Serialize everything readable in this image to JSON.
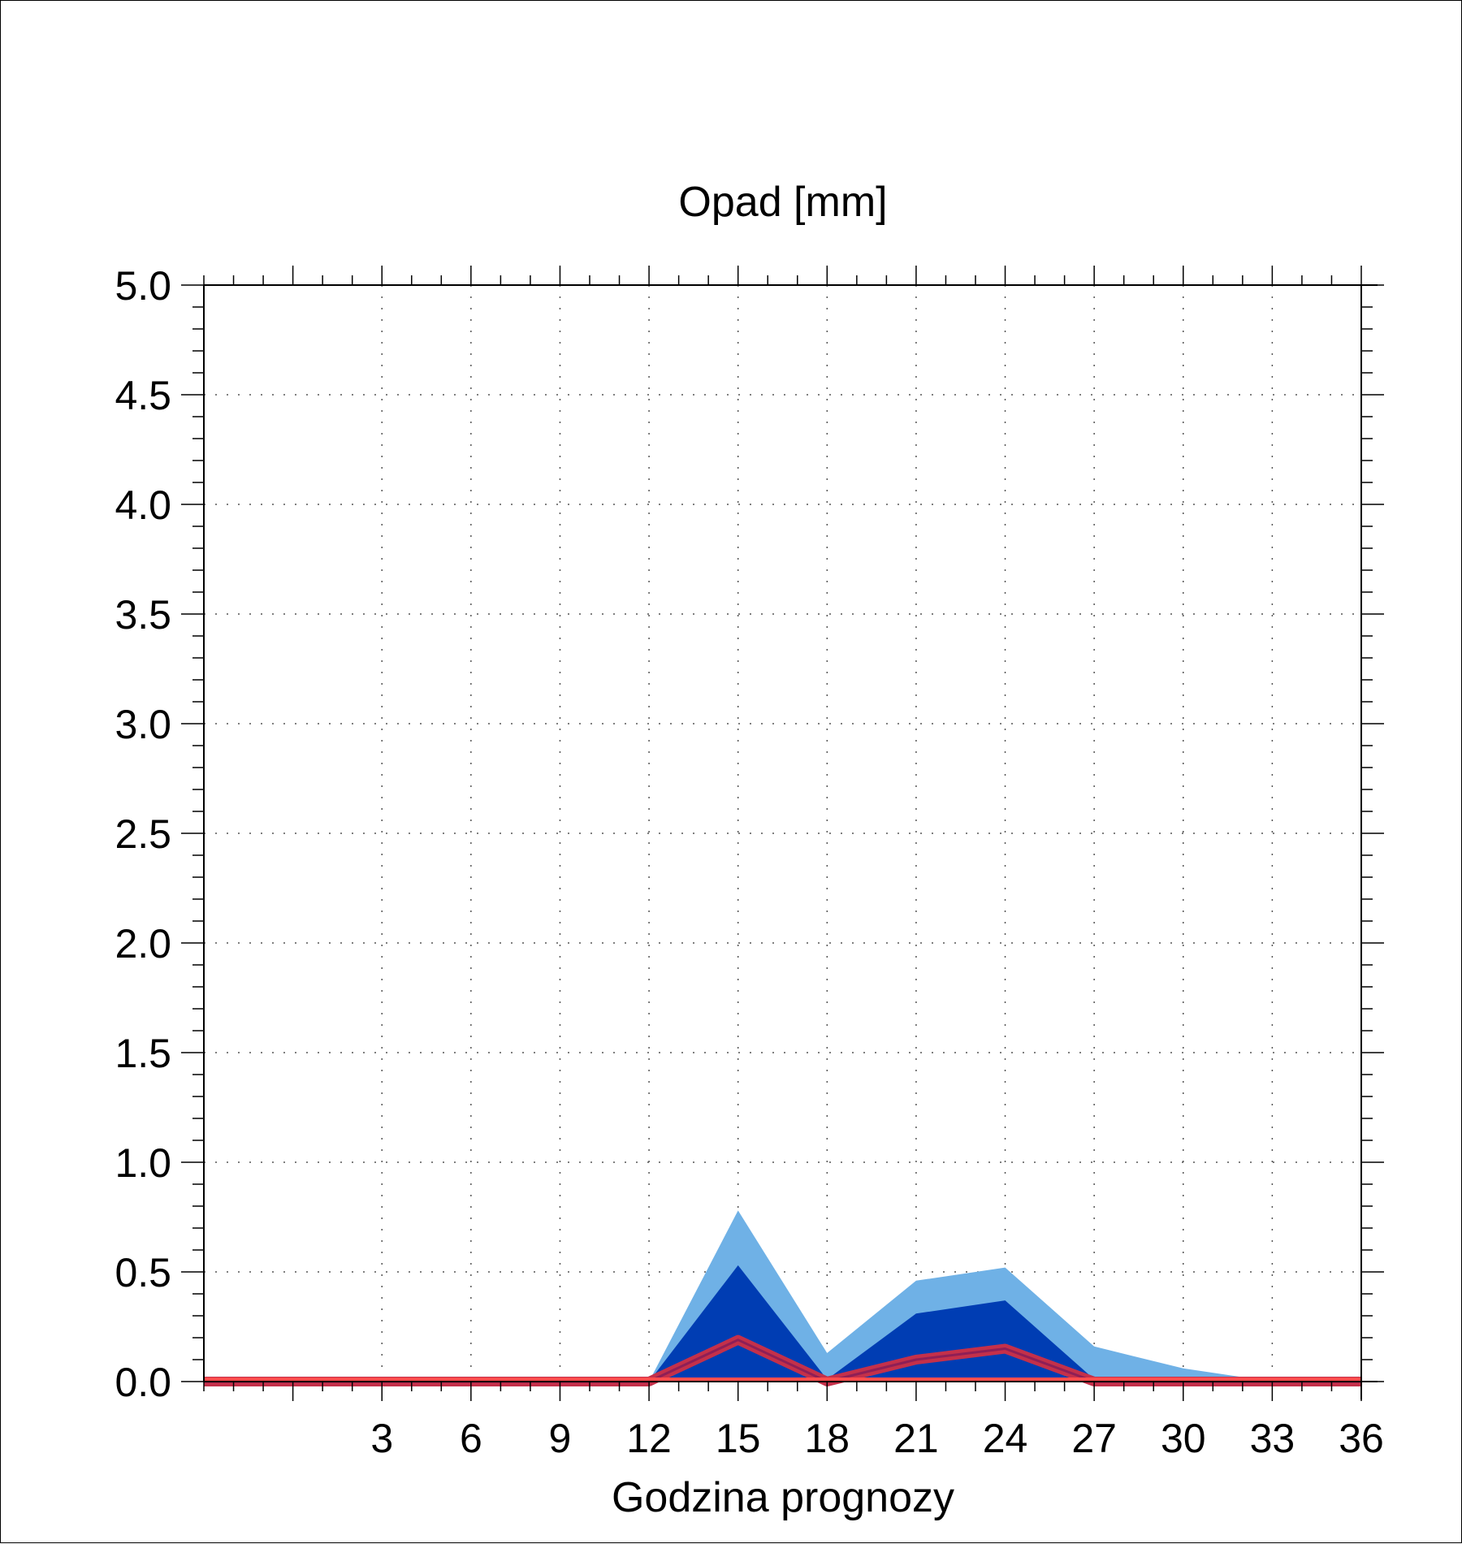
{
  "chart_data": {
    "type": "area",
    "title": "Opad [mm]",
    "xlabel": "Godzina prognozy",
    "ylabel": "",
    "xlim": [
      -3,
      36
    ],
    "ylim": [
      0,
      5
    ],
    "xticks": [
      3,
      6,
      9,
      12,
      15,
      18,
      21,
      24,
      27,
      30,
      33,
      36
    ],
    "xtick_labels": [
      "3",
      "6",
      "9",
      "12",
      "15",
      "18",
      "21",
      "24",
      "27",
      "30",
      "33",
      "36"
    ],
    "yticks": [
      0,
      0.5,
      1,
      1.5,
      2,
      2.5,
      3,
      3.5,
      4,
      4.5,
      5
    ],
    "ytick_labels": [
      "0.0",
      "0.5",
      "1.0",
      "1.5",
      "2.0",
      "2.5",
      "3.0",
      "3.5",
      "4.0",
      "4.5",
      "5.0"
    ],
    "grid": true,
    "x": [
      -3,
      0,
      3,
      6,
      9,
      12,
      15,
      18,
      21,
      24,
      27,
      30,
      33,
      36
    ],
    "series": [
      {
        "kind": "band-outer",
        "color": "#6fb1e6",
        "values": [
          0,
          0,
          0,
          0,
          0,
          0,
          0.78,
          0.13,
          0.46,
          0.52,
          0.16,
          0.06,
          0.0,
          0
        ]
      },
      {
        "kind": "band-inner",
        "color": "#003db3",
        "values": [
          0,
          0,
          0,
          0,
          0,
          0,
          0.53,
          0.01,
          0.31,
          0.37,
          0.01,
          0.0,
          0.0,
          0
        ]
      },
      {
        "kind": "line",
        "color": "#c4304a",
        "values": [
          0,
          0,
          0,
          0,
          0,
          0,
          0.19,
          0.0,
          0.1,
          0.15,
          0.0,
          0.0,
          0.0,
          0
        ]
      }
    ],
    "threshold": {
      "value": 0,
      "color": "#ff4d4d"
    }
  }
}
